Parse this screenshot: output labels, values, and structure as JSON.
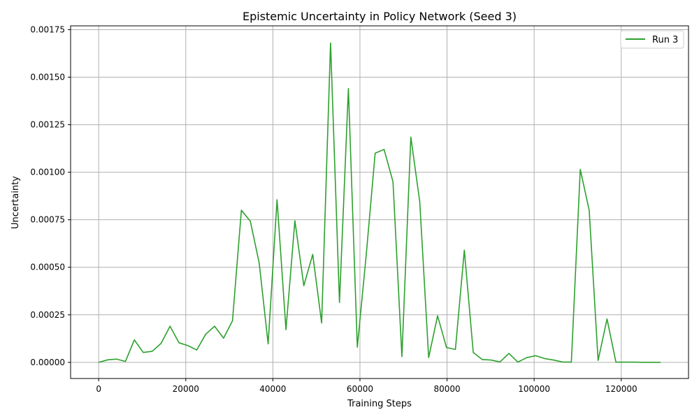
{
  "chart_data": {
    "type": "line",
    "title": "Epistemic Uncertainty in Policy Network (Seed 3)",
    "xlabel": "Training Steps",
    "ylabel": "Uncertainty",
    "xlim": [
      -6450,
      135450
    ],
    "ylim": [
      -8.5e-05,
      0.00177
    ],
    "x_ticks": [
      0,
      20000,
      40000,
      60000,
      80000,
      100000,
      120000
    ],
    "x_tick_labels": [
      "0",
      "20000",
      "40000",
      "60000",
      "80000",
      "100000",
      "120000"
    ],
    "y_ticks": [
      0,
      0.00025,
      0.0005,
      0.00075,
      0.001,
      0.00125,
      0.0015,
      0.00175
    ],
    "y_tick_labels": [
      "0.00000",
      "0.00025",
      "0.00050",
      "0.00075",
      "0.00100",
      "0.00125",
      "0.00150",
      "0.00175"
    ],
    "grid": true,
    "legend": {
      "position": "top-right"
    },
    "series": [
      {
        "name": "Run 3",
        "color": "#2ca02c",
        "x": [
          0,
          2048,
          4096,
          6144,
          8192,
          10240,
          12288,
          14336,
          16384,
          18432,
          20480,
          22528,
          24576,
          26624,
          28672,
          30720,
          32768,
          34816,
          36864,
          38912,
          40960,
          43008,
          45056,
          47104,
          49152,
          51200,
          53248,
          55296,
          57344,
          59392,
          61440,
          63488,
          65536,
          67584,
          69632,
          71680,
          73728,
          75776,
          77824,
          79872,
          81920,
          83968,
          86016,
          88064,
          90112,
          92160,
          94208,
          96256,
          98304,
          100352,
          102400,
          104448,
          106496,
          108544,
          110592,
          112640,
          114688,
          116736,
          118784,
          120832,
          122880,
          124928,
          126976,
          129024
        ],
        "values": [
          0.0,
          1.3e-05,
          1.7e-05,
          5e-06,
          0.000118,
          5.2e-05,
          5.8e-05,
          0.0001,
          0.00019,
          0.000103,
          8.8e-05,
          6.5e-05,
          0.000148,
          0.00019,
          0.000127,
          0.000218,
          0.0008,
          0.000743,
          0.000522,
          9.7e-05,
          0.000855,
          0.000172,
          0.000745,
          0.000403,
          0.000568,
          0.000207,
          0.00168,
          0.000315,
          0.00144,
          8e-05,
          0.000565,
          0.0011,
          0.00112,
          0.00095,
          3e-05,
          0.001185,
          0.000845,
          2.5e-05,
          0.000245,
          7.8e-05,
          6.8e-05,
          0.00059,
          5.2e-05,
          1.5e-05,
          1.2e-05,
          2e-06,
          4.7e-05,
          1e-06,
          2.5e-05,
          3.5e-05,
          2e-05,
          1.2e-05,
          2e-06,
          1e-06,
          0.001015,
          0.0008,
          1e-05,
          0.000228,
          1e-06,
          1e-06,
          1e-06,
          0.0,
          0.0,
          0.0
        ]
      }
    ]
  }
}
